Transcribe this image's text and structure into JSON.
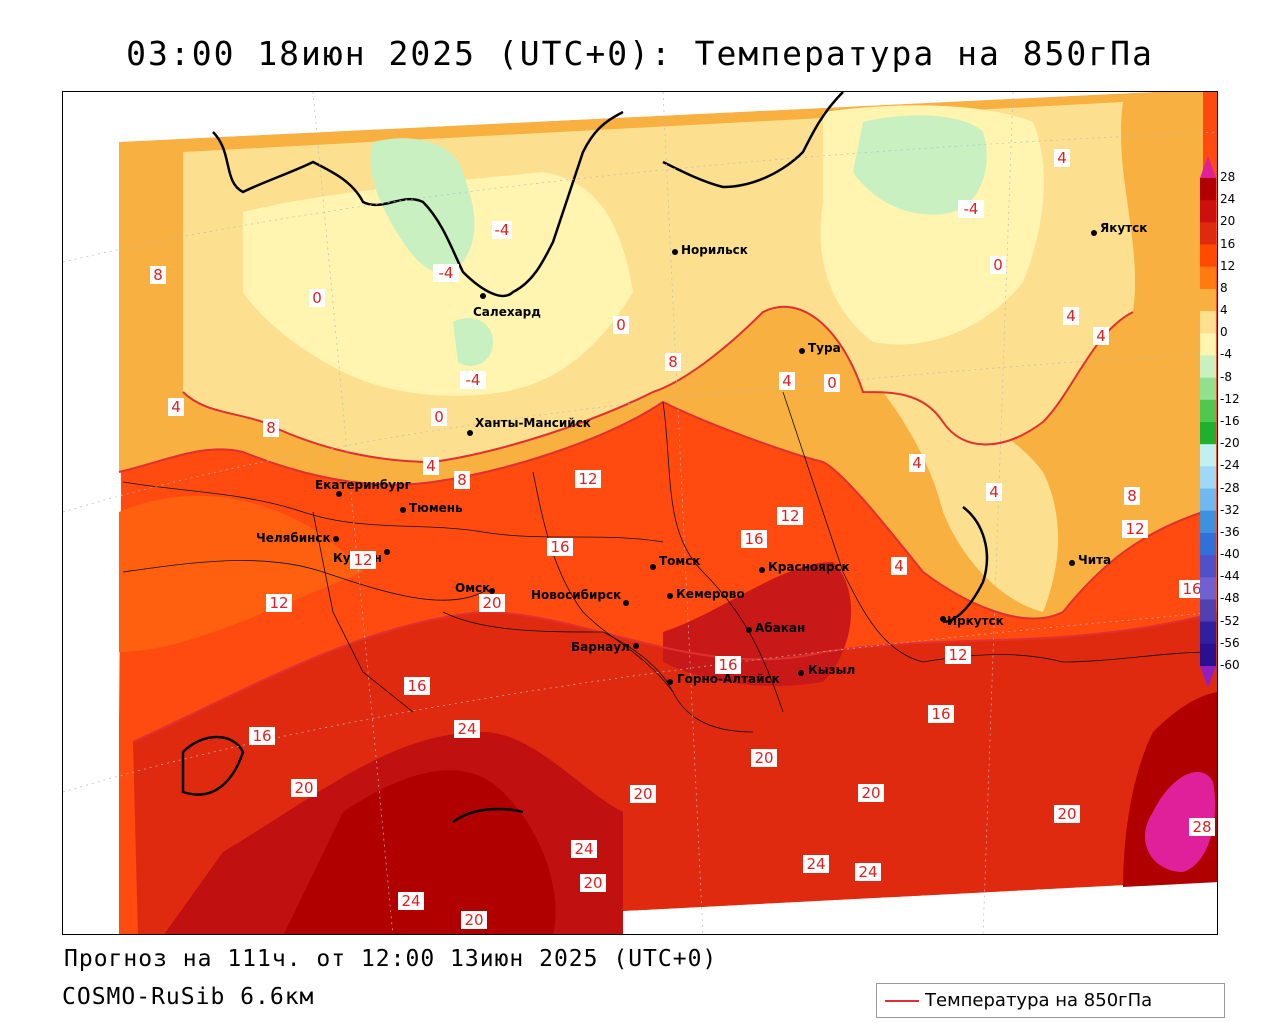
{
  "title": "03:00 18июн 2025 (UTC+0): Температура на 850гПа",
  "forecast_line": "Прогноз на 111ч. от 12:00 13июн 2025 (UTC+0)",
  "model_line": "COSMO-RuSib 6.6км",
  "legend_label": "Температура на 850гПа",
  "colorbar": {
    "ticks": [
      "28",
      "24",
      "20",
      "16",
      "12",
      "8",
      "4",
      "0",
      "-4",
      "-8",
      "-12",
      "-16",
      "-20",
      "-24",
      "-28",
      "-32",
      "-36",
      "-40",
      "-44",
      "-48",
      "-52",
      "-56",
      "-60"
    ],
    "colors": [
      "#b00000",
      "#cc1010",
      "#e02a10",
      "#ff4a00",
      "#ff7a10",
      "#f8b040",
      "#fce090",
      "#fff4b0",
      "#c8f0c0",
      "#90e090",
      "#50c850",
      "#20b030",
      "#c0f0f0",
      "#a0d8f8",
      "#70b8f0",
      "#4090e0",
      "#3070d8",
      "#5050c8",
      "#7060d0",
      "#5040b0",
      "#3020a0",
      "#2a1090",
      "#7020b0"
    ],
    "top_color": "#e0209a",
    "bottom_color": "#9020c0"
  },
  "cities": [
    {
      "name": "Норильск"
    },
    {
      "name": "Якутск"
    },
    {
      "name": "Салехард"
    },
    {
      "name": "Тура"
    },
    {
      "name": "Ханты-Мансийск"
    },
    {
      "name": "Екатеринбург"
    },
    {
      "name": "Тюмень"
    },
    {
      "name": "Челябинск"
    },
    {
      "name": "Курган"
    },
    {
      "name": "Омск"
    },
    {
      "name": "Томск"
    },
    {
      "name": "Красноярск"
    },
    {
      "name": "Новосибирск"
    },
    {
      "name": "Кемерово"
    },
    {
      "name": "Абакан"
    },
    {
      "name": "Барнаул"
    },
    {
      "name": "Горно-Алтайск"
    },
    {
      "name": "Кызыл"
    },
    {
      "name": "Иркутск"
    },
    {
      "name": "Чита"
    }
  ],
  "isotherm_labels": [
    "-4",
    "-4",
    "-4",
    "-4",
    "4",
    "0",
    "0",
    "0",
    "0",
    "8",
    "8",
    "4",
    "4",
    "8",
    "8",
    "4",
    "4",
    "0",
    "4",
    "4",
    "4",
    "4",
    "8",
    "12",
    "12",
    "12",
    "16",
    "16",
    "16",
    "12",
    "12",
    "12",
    "16",
    "16",
    "16",
    "16",
    "20",
    "24",
    "20",
    "20",
    "20",
    "20",
    "20",
    "24",
    "24",
    "24",
    "20",
    "24",
    "20",
    "28"
  ]
}
